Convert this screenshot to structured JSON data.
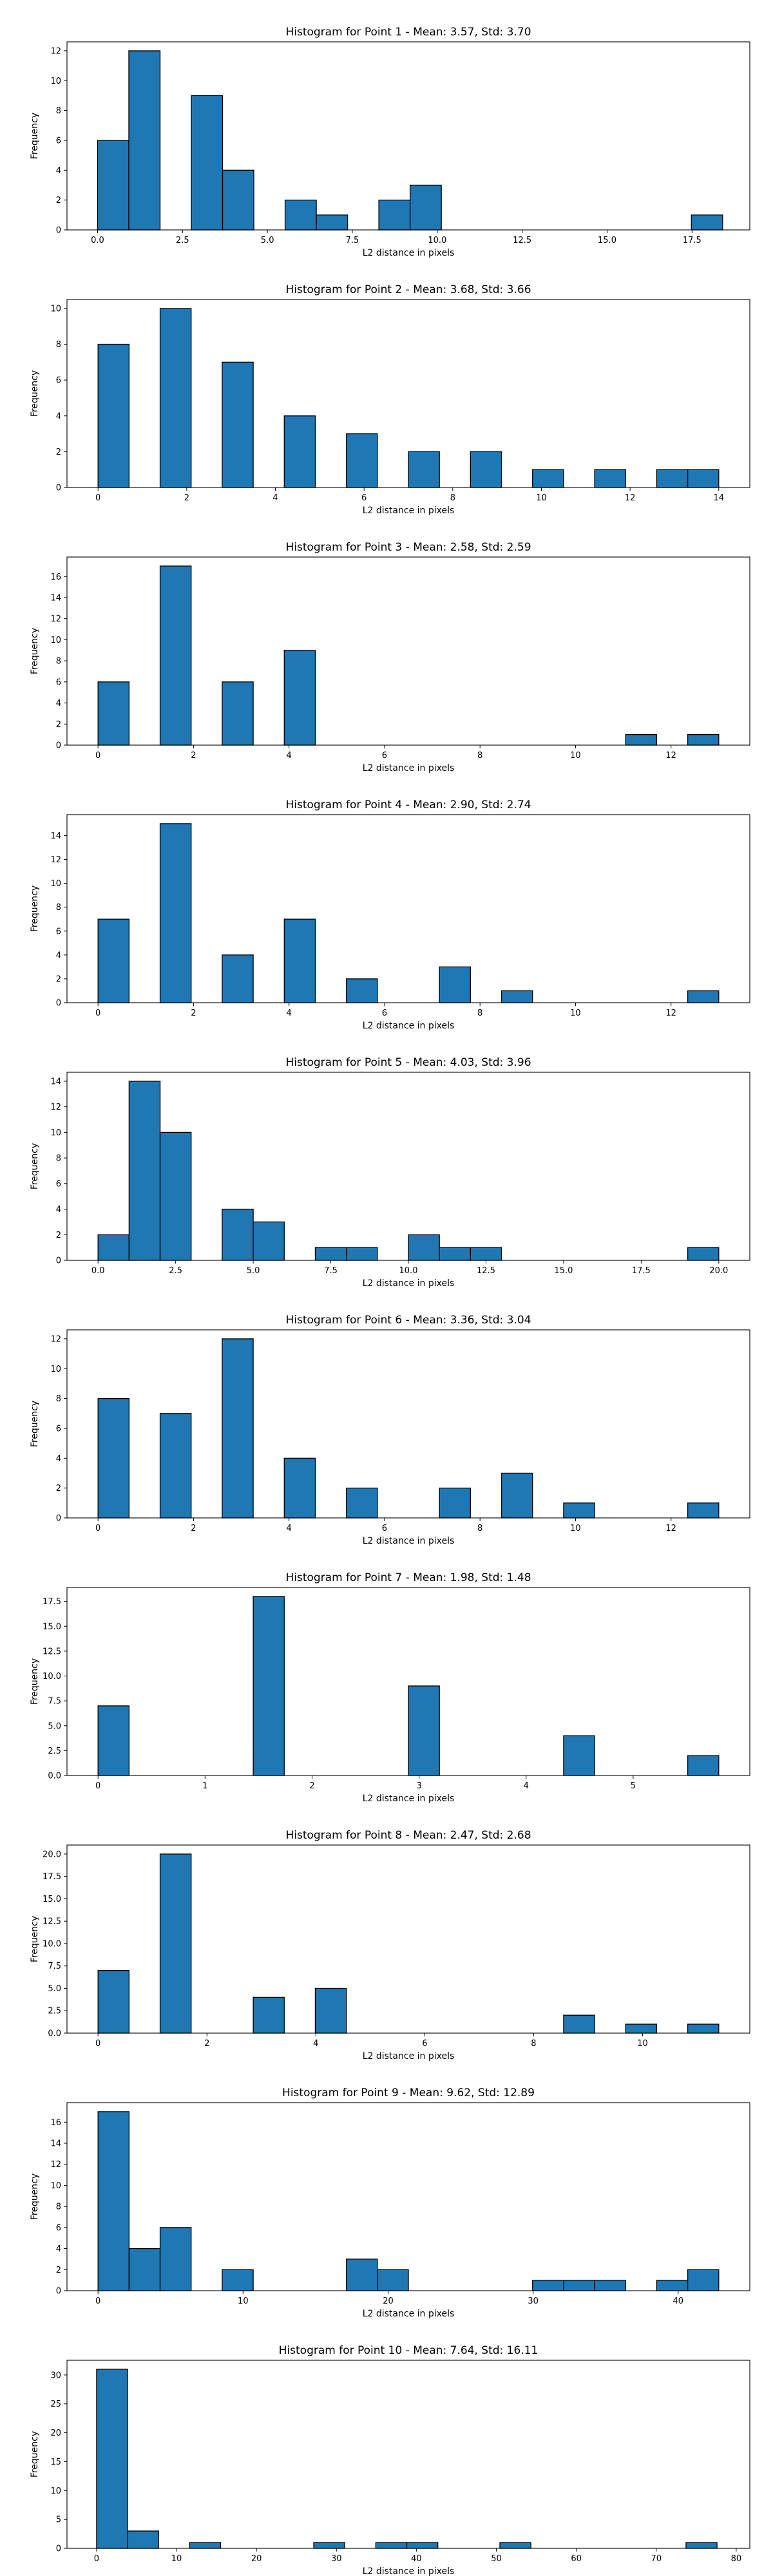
{
  "style": {
    "bar_color": "#1f77b4",
    "edge_color": "#000000",
    "background": "#ffffff"
  },
  "chart_data": [
    {
      "type": "bar",
      "title": "Histogram for Point 1 - Mean: 3.57, Std: 3.70",
      "xlabel": "L2 distance in pixels",
      "ylabel": "Frequency",
      "xlim": [
        -0.9,
        19.2
      ],
      "ylim": [
        0,
        12.6
      ],
      "xticks": [
        0.0,
        2.5,
        5.0,
        7.5,
        10.0,
        12.5,
        15.0,
        17.5
      ],
      "xtick_labels": [
        "0.0",
        "2.5",
        "5.0",
        "7.5",
        "10.0",
        "12.5",
        "15.0",
        "17.5"
      ],
      "yticks": [
        0,
        2,
        4,
        6,
        8,
        10,
        12
      ],
      "ytick_labels": [
        "0",
        "2",
        "4",
        "6",
        "8",
        "10",
        "12"
      ],
      "grid": false,
      "bins": [
        {
          "start": 0.0,
          "end": 0.92,
          "count": 6
        },
        {
          "start": 0.92,
          "end": 1.84,
          "count": 12
        },
        {
          "start": 2.76,
          "end": 3.68,
          "count": 9
        },
        {
          "start": 3.68,
          "end": 4.6,
          "count": 4
        },
        {
          "start": 5.52,
          "end": 6.44,
          "count": 2
        },
        {
          "start": 6.44,
          "end": 7.36,
          "count": 1
        },
        {
          "start": 8.28,
          "end": 9.2,
          "count": 2
        },
        {
          "start": 9.2,
          "end": 10.12,
          "count": 3
        },
        {
          "start": 17.48,
          "end": 18.4,
          "count": 1
        }
      ]
    },
    {
      "type": "bar",
      "title": "Histogram for Point 2 - Mean: 3.68, Std: 3.66",
      "xlabel": "L2 distance in pixels",
      "ylabel": "Frequency",
      "xlim": [
        -0.7,
        14.7
      ],
      "ylim": [
        0,
        10.5
      ],
      "xticks": [
        0,
        2,
        4,
        6,
        8,
        10,
        12,
        14
      ],
      "xtick_labels": [
        "0",
        "2",
        "4",
        "6",
        "8",
        "10",
        "12",
        "14"
      ],
      "yticks": [
        0,
        2,
        4,
        6,
        8,
        10
      ],
      "ytick_labels": [
        "0",
        "2",
        "4",
        "6",
        "8",
        "10"
      ],
      "grid": false,
      "bins": [
        {
          "start": 0.0,
          "end": 0.7,
          "count": 8
        },
        {
          "start": 1.4,
          "end": 2.1,
          "count": 10
        },
        {
          "start": 2.8,
          "end": 3.5,
          "count": 7
        },
        {
          "start": 4.2,
          "end": 4.9,
          "count": 4
        },
        {
          "start": 5.6,
          "end": 6.3,
          "count": 3
        },
        {
          "start": 7.0,
          "end": 7.7,
          "count": 2
        },
        {
          "start": 8.4,
          "end": 9.1,
          "count": 2
        },
        {
          "start": 9.8,
          "end": 10.5,
          "count": 1
        },
        {
          "start": 11.2,
          "end": 11.9,
          "count": 1
        },
        {
          "start": 12.6,
          "end": 13.3,
          "count": 1
        },
        {
          "start": 13.3,
          "end": 14.0,
          "count": 1
        }
      ]
    },
    {
      "type": "bar",
      "title": "Histogram for Point 3 - Mean: 2.58, Std: 2.59",
      "xlabel": "L2 distance in pixels",
      "ylabel": "Frequency",
      "xlim": [
        -0.65,
        13.65
      ],
      "ylim": [
        0,
        17.85
      ],
      "xticks": [
        0,
        2,
        4,
        6,
        8,
        10,
        12
      ],
      "xtick_labels": [
        "0",
        "2",
        "4",
        "6",
        "8",
        "10",
        "12"
      ],
      "yticks": [
        0,
        2,
        4,
        6,
        8,
        10,
        12,
        14,
        16
      ],
      "ytick_labels": [
        "0",
        "2",
        "4",
        "6",
        "8",
        "10",
        "12",
        "14",
        "16"
      ],
      "grid": false,
      "bins": [
        {
          "start": 0.0,
          "end": 0.65,
          "count": 6
        },
        {
          "start": 1.3,
          "end": 1.95,
          "count": 17
        },
        {
          "start": 2.6,
          "end": 3.25,
          "count": 6
        },
        {
          "start": 3.9,
          "end": 4.55,
          "count": 9
        },
        {
          "start": 11.05,
          "end": 11.7,
          "count": 1
        },
        {
          "start": 12.35,
          "end": 13.0,
          "count": 1
        }
      ]
    },
    {
      "type": "bar",
      "title": "Histogram for Point 4 - Mean: 2.90, Std: 2.74",
      "xlabel": "L2 distance in pixels",
      "ylabel": "Frequency",
      "xlim": [
        -0.65,
        13.65
      ],
      "ylim": [
        0,
        15.75
      ],
      "xticks": [
        0,
        2,
        4,
        6,
        8,
        10,
        12
      ],
      "xtick_labels": [
        "0",
        "2",
        "4",
        "6",
        "8",
        "10",
        "12"
      ],
      "yticks": [
        0,
        2,
        4,
        6,
        8,
        10,
        12,
        14
      ],
      "ytick_labels": [
        "0",
        "2",
        "4",
        "6",
        "8",
        "10",
        "12",
        "14"
      ],
      "grid": false,
      "bins": [
        {
          "start": 0.0,
          "end": 0.65,
          "count": 7
        },
        {
          "start": 1.3,
          "end": 1.95,
          "count": 15
        },
        {
          "start": 2.6,
          "end": 3.25,
          "count": 4
        },
        {
          "start": 3.9,
          "end": 4.55,
          "count": 7
        },
        {
          "start": 5.2,
          "end": 5.85,
          "count": 2
        },
        {
          "start": 7.15,
          "end": 7.8,
          "count": 3
        },
        {
          "start": 8.45,
          "end": 9.1,
          "count": 1
        },
        {
          "start": 12.35,
          "end": 13.0,
          "count": 1
        }
      ]
    },
    {
      "type": "bar",
      "title": "Histogram for Point 5 - Mean: 4.03, Std: 3.96",
      "xlabel": "L2 distance in pixels",
      "ylabel": "Frequency",
      "xlim": [
        -1.0,
        21.0
      ],
      "ylim": [
        0,
        14.7
      ],
      "xticks": [
        0.0,
        2.5,
        5.0,
        7.5,
        10.0,
        12.5,
        15.0,
        17.5,
        20.0
      ],
      "xtick_labels": [
        "0.0",
        "2.5",
        "5.0",
        "7.5",
        "10.0",
        "12.5",
        "15.0",
        "17.5",
        "20.0"
      ],
      "yticks": [
        0,
        2,
        4,
        6,
        8,
        10,
        12,
        14
      ],
      "ytick_labels": [
        "0",
        "2",
        "4",
        "6",
        "8",
        "10",
        "12",
        "14"
      ],
      "grid": false,
      "bins": [
        {
          "start": 0.0,
          "end": 1.0,
          "count": 2
        },
        {
          "start": 1.0,
          "end": 2.0,
          "count": 14
        },
        {
          "start": 2.0,
          "end": 3.0,
          "count": 10
        },
        {
          "start": 4.0,
          "end": 5.0,
          "count": 4
        },
        {
          "start": 5.0,
          "end": 6.0,
          "count": 3
        },
        {
          "start": 7.0,
          "end": 8.0,
          "count": 1
        },
        {
          "start": 8.0,
          "end": 9.0,
          "count": 1
        },
        {
          "start": 10.0,
          "end": 11.0,
          "count": 2
        },
        {
          "start": 11.0,
          "end": 12.0,
          "count": 1
        },
        {
          "start": 12.0,
          "end": 13.0,
          "count": 1
        },
        {
          "start": 19.0,
          "end": 20.0,
          "count": 1
        }
      ]
    },
    {
      "type": "bar",
      "title": "Histogram for Point 6 - Mean: 3.36, Std: 3.04",
      "xlabel": "L2 distance in pixels",
      "ylabel": "Frequency",
      "xlim": [
        -0.65,
        13.65
      ],
      "ylim": [
        0,
        12.6
      ],
      "xticks": [
        0,
        2,
        4,
        6,
        8,
        10,
        12
      ],
      "xtick_labels": [
        "0",
        "2",
        "4",
        "6",
        "8",
        "10",
        "12"
      ],
      "yticks": [
        0,
        2,
        4,
        6,
        8,
        10,
        12
      ],
      "ytick_labels": [
        "0",
        "2",
        "4",
        "6",
        "8",
        "10",
        "12"
      ],
      "grid": false,
      "bins": [
        {
          "start": 0.0,
          "end": 0.65,
          "count": 8
        },
        {
          "start": 1.3,
          "end": 1.95,
          "count": 7
        },
        {
          "start": 2.6,
          "end": 3.25,
          "count": 12
        },
        {
          "start": 3.9,
          "end": 4.55,
          "count": 4
        },
        {
          "start": 5.2,
          "end": 5.85,
          "count": 2
        },
        {
          "start": 7.15,
          "end": 7.8,
          "count": 2
        },
        {
          "start": 8.45,
          "end": 9.1,
          "count": 3
        },
        {
          "start": 9.75,
          "end": 10.4,
          "count": 1
        },
        {
          "start": 12.35,
          "end": 13.0,
          "count": 1
        }
      ]
    },
    {
      "type": "bar",
      "title": "Histogram for Point 7 - Mean: 1.98, Std: 1.48",
      "xlabel": "L2 distance in pixels",
      "ylabel": "Frequency",
      "xlim": [
        -0.29,
        6.09
      ],
      "ylim": [
        0,
        18.9
      ],
      "xticks": [
        0,
        1,
        2,
        3,
        4,
        5
      ],
      "xtick_labels": [
        "0",
        "1",
        "2",
        "3",
        "4",
        "5"
      ],
      "yticks": [
        0.0,
        2.5,
        5.0,
        7.5,
        10.0,
        12.5,
        15.0,
        17.5
      ],
      "ytick_labels": [
        "0.0",
        "2.5",
        "5.0",
        "7.5",
        "10.0",
        "12.5",
        "15.0",
        "17.5"
      ],
      "grid": false,
      "bins": [
        {
          "start": 0.0,
          "end": 0.29,
          "count": 7
        },
        {
          "start": 1.45,
          "end": 1.74,
          "count": 18
        },
        {
          "start": 2.9,
          "end": 3.19,
          "count": 9
        },
        {
          "start": 4.35,
          "end": 4.64,
          "count": 4
        },
        {
          "start": 5.51,
          "end": 5.8,
          "count": 2
        }
      ]
    },
    {
      "type": "bar",
      "title": "Histogram for Point 8 - Mean: 2.47, Std: 2.68",
      "xlabel": "L2 distance in pixels",
      "ylabel": "Frequency",
      "xlim": [
        -0.57,
        11.97
      ],
      "ylim": [
        0,
        21.0
      ],
      "xticks": [
        0,
        2,
        4,
        6,
        8,
        10
      ],
      "xtick_labels": [
        "0",
        "2",
        "4",
        "6",
        "8",
        "10"
      ],
      "yticks": [
        0.0,
        2.5,
        5.0,
        7.5,
        10.0,
        12.5,
        15.0,
        17.5,
        20.0
      ],
      "ytick_labels": [
        "0.0",
        "2.5",
        "5.0",
        "7.5",
        "10.0",
        "12.5",
        "15.0",
        "17.5",
        "20.0"
      ],
      "grid": false,
      "bins": [
        {
          "start": 0.0,
          "end": 0.57,
          "count": 7
        },
        {
          "start": 1.14,
          "end": 1.71,
          "count": 20
        },
        {
          "start": 2.85,
          "end": 3.42,
          "count": 4
        },
        {
          "start": 3.99,
          "end": 4.56,
          "count": 5
        },
        {
          "start": 8.55,
          "end": 9.12,
          "count": 2
        },
        {
          "start": 9.69,
          "end": 10.26,
          "count": 1
        },
        {
          "start": 10.83,
          "end": 11.4,
          "count": 1
        }
      ]
    },
    {
      "type": "bar",
      "title": "Histogram for Point 9 - Mean: 9.62, Std: 12.89",
      "xlabel": "L2 distance in pixels",
      "ylabel": "Frequency",
      "xlim": [
        -2.14,
        44.94
      ],
      "ylim": [
        0,
        17.85
      ],
      "xticks": [
        0,
        10,
        20,
        30,
        40
      ],
      "xtick_labels": [
        "0",
        "10",
        "20",
        "30",
        "40"
      ],
      "yticks": [
        0,
        2,
        4,
        6,
        8,
        10,
        12,
        14,
        16
      ],
      "ytick_labels": [
        "0",
        "2",
        "4",
        "6",
        "8",
        "10",
        "12",
        "14",
        "16"
      ],
      "grid": false,
      "bins": [
        {
          "start": 0.0,
          "end": 2.14,
          "count": 17
        },
        {
          "start": 2.14,
          "end": 4.28,
          "count": 4
        },
        {
          "start": 4.28,
          "end": 6.42,
          "count": 6
        },
        {
          "start": 8.56,
          "end": 10.7,
          "count": 2
        },
        {
          "start": 17.12,
          "end": 19.26,
          "count": 3
        },
        {
          "start": 19.26,
          "end": 21.4,
          "count": 2
        },
        {
          "start": 29.96,
          "end": 32.1,
          "count": 1
        },
        {
          "start": 32.1,
          "end": 34.24,
          "count": 1
        },
        {
          "start": 34.24,
          "end": 36.38,
          "count": 1
        },
        {
          "start": 38.52,
          "end": 40.66,
          "count": 1
        },
        {
          "start": 40.66,
          "end": 42.8,
          "count": 2
        }
      ]
    },
    {
      "type": "bar",
      "title": "Histogram for Point 10 - Mean: 7.64, Std: 16.11",
      "xlabel": "L2 distance in pixels",
      "ylabel": "Frequency",
      "xlim": [
        -3.7,
        81.7
      ],
      "ylim": [
        0,
        32.55
      ],
      "xticks": [
        0,
        10,
        20,
        30,
        40,
        50,
        60,
        70,
        80
      ],
      "xtick_labels": [
        "0",
        "10",
        "20",
        "30",
        "40",
        "50",
        "60",
        "70",
        "80"
      ],
      "yticks": [
        0,
        5,
        10,
        15,
        20,
        25,
        30
      ],
      "ytick_labels": [
        "0",
        "5",
        "10",
        "15",
        "20",
        "25",
        "30"
      ],
      "grid": false,
      "bins": [
        {
          "start": 0.0,
          "end": 3.88,
          "count": 31
        },
        {
          "start": 3.88,
          "end": 7.76,
          "count": 3
        },
        {
          "start": 11.64,
          "end": 15.52,
          "count": 1
        },
        {
          "start": 27.16,
          "end": 31.04,
          "count": 1
        },
        {
          "start": 34.92,
          "end": 38.8,
          "count": 1
        },
        {
          "start": 38.8,
          "end": 42.68,
          "count": 1
        },
        {
          "start": 50.44,
          "end": 54.32,
          "count": 1
        },
        {
          "start": 73.72,
          "end": 77.6,
          "count": 1
        }
      ]
    }
  ]
}
